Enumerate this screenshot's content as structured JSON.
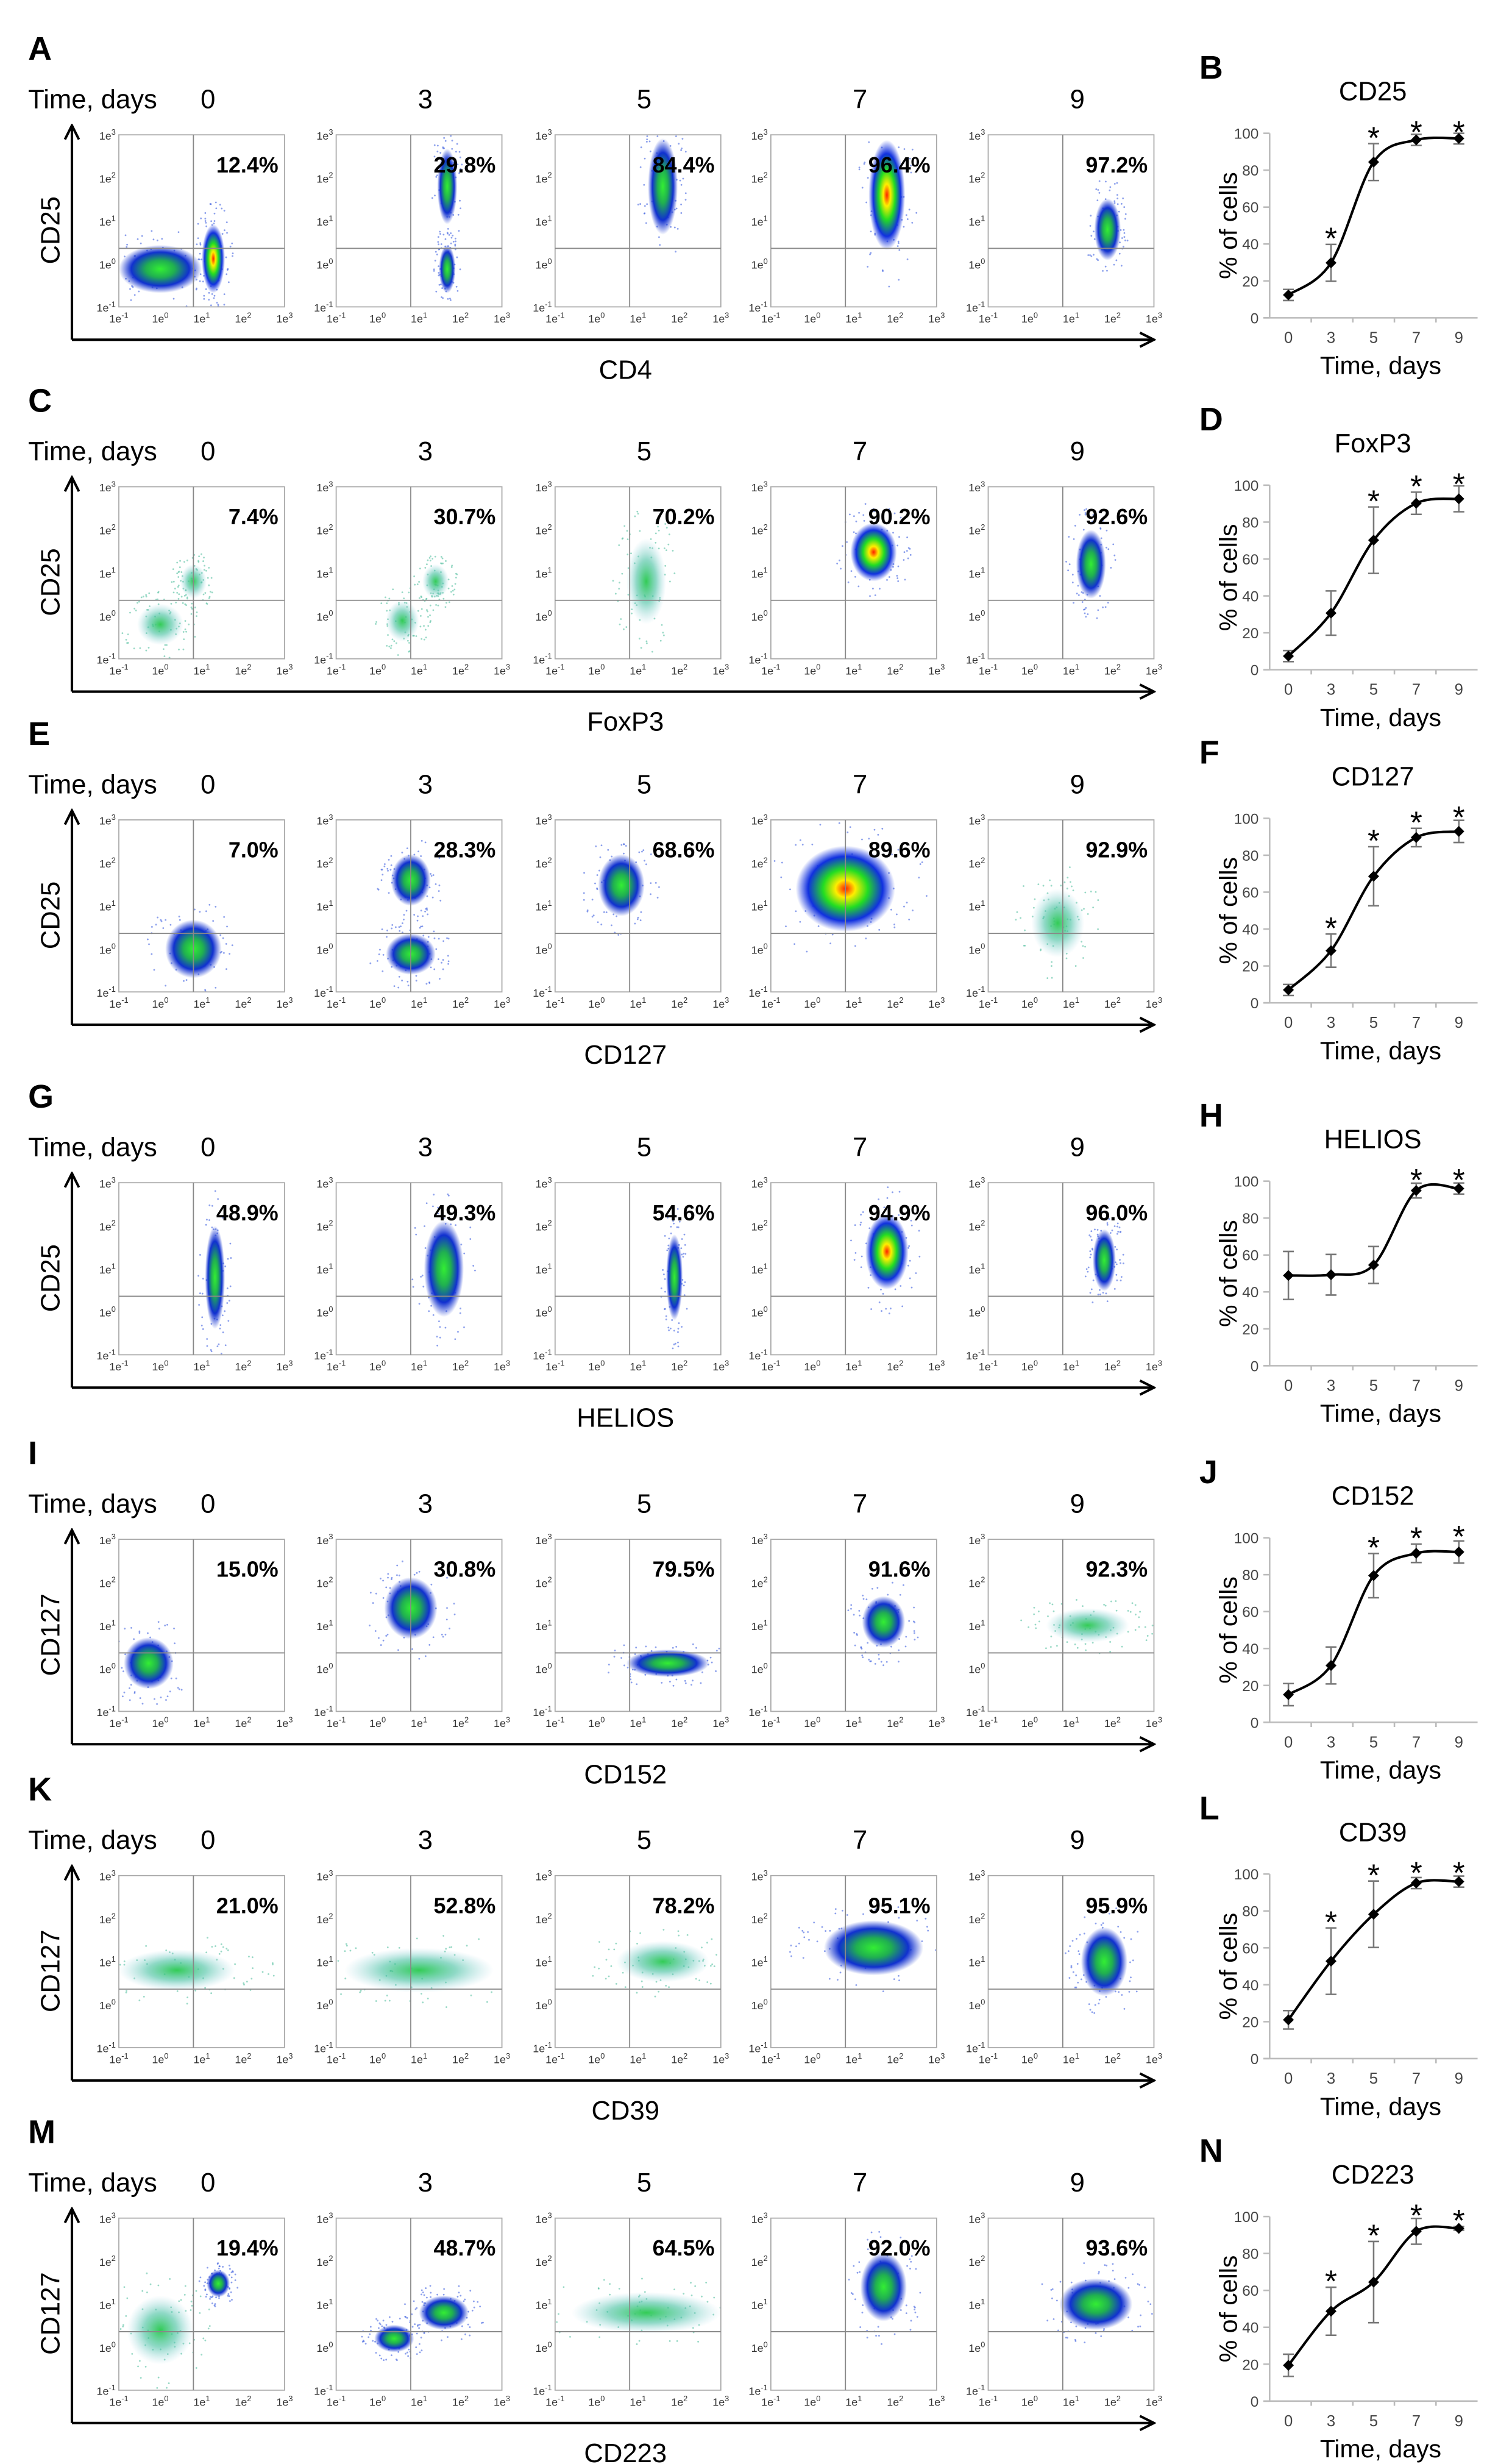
{
  "axis_ticks": [
    {
      "base": "1e",
      "exp": "-1"
    },
    {
      "base": "1e",
      "exp": "0"
    },
    {
      "base": "1e",
      "exp": "1"
    },
    {
      "base": "1e",
      "exp": "2"
    },
    {
      "base": "1e",
      "exp": "3"
    }
  ],
  "rows": [
    {
      "letter": "A",
      "time_label": "Time, days",
      "days": [
        "0",
        "3",
        "5",
        "7",
        "9"
      ],
      "y_label": "CD25",
      "x_label": "CD4",
      "percents": [
        "12.4%",
        "29.8%",
        "84.4%",
        "96.4%",
        "97.2%"
      ]
    },
    {
      "letter": "C",
      "time_label": "Time, days",
      "days": [
        "0",
        "3",
        "5",
        "7",
        "9"
      ],
      "y_label": "CD25",
      "x_label": "FoxP3",
      "percents": [
        "7.4%",
        "30.7%",
        "70.2%",
        "90.2%",
        "92.6%"
      ]
    },
    {
      "letter": "E",
      "time_label": "Time, days",
      "days": [
        "0",
        "3",
        "5",
        "7",
        "9"
      ],
      "y_label": "CD25",
      "x_label": "CD127",
      "percents": [
        "7.0%",
        "28.3%",
        "68.6%",
        "89.6%",
        "92.9%"
      ]
    },
    {
      "letter": "G",
      "time_label": "Time, days",
      "days": [
        "0",
        "3",
        "5",
        "7",
        "9"
      ],
      "y_label": "CD25",
      "x_label": "HELIOS",
      "percents": [
        "48.9%",
        "49.3%",
        "54.6%",
        "94.9%",
        "96.0%"
      ]
    },
    {
      "letter": "I",
      "time_label": "Time, days",
      "days": [
        "0",
        "3",
        "5",
        "7",
        "9"
      ],
      "y_label": "CD127",
      "x_label": "CD152",
      "percents": [
        "15.0%",
        "30.8%",
        "79.5%",
        "91.6%",
        "92.3%"
      ]
    },
    {
      "letter": "K",
      "time_label": "Time, days",
      "days": [
        "0",
        "3",
        "5",
        "7",
        "9"
      ],
      "y_label": "CD127",
      "x_label": "CD39",
      "percents": [
        "21.0%",
        "52.8%",
        "78.2%",
        "95.1%",
        "95.9%"
      ]
    },
    {
      "letter": "M",
      "time_label": "Time, days",
      "days": [
        "0",
        "3",
        "5",
        "7",
        "9"
      ],
      "y_label": "CD127",
      "x_label": "CD223",
      "percents": [
        "19.4%",
        "48.7%",
        "64.5%",
        "92.0%",
        "93.6%"
      ]
    }
  ],
  "chart_data": [
    {
      "type": "line",
      "letter": "B",
      "title": "CD25",
      "xlabel": "Time, days",
      "ylabel": "% of cells",
      "x": [
        0,
        3,
        5,
        7,
        9
      ],
      "x_tick_labels": [
        "0",
        "3",
        "5",
        "7",
        "9"
      ],
      "y": [
        12.4,
        29.8,
        84.4,
        96.4,
        97.2
      ],
      "error": [
        3,
        10,
        10,
        3,
        3
      ],
      "significant_x": [
        3,
        5,
        7,
        9
      ],
      "significance_mark": "*",
      "ylim": [
        0,
        100
      ],
      "y_ticks": [
        "0",
        "20",
        "40",
        "60",
        "80",
        "100"
      ]
    },
    {
      "type": "line",
      "letter": "D",
      "title": "FoxP3",
      "xlabel": "Time, days",
      "ylabel": "% of cells",
      "x": [
        0,
        3,
        5,
        7,
        9
      ],
      "x_tick_labels": [
        "0",
        "3",
        "5",
        "7",
        "9"
      ],
      "y": [
        7.4,
        30.7,
        70.2,
        90.2,
        92.6
      ],
      "error": [
        3,
        12,
        18,
        6,
        7
      ],
      "significant_x": [
        5,
        7,
        9
      ],
      "significance_mark": "*",
      "ylim": [
        0,
        100
      ],
      "y_ticks": [
        "0",
        "20",
        "40",
        "60",
        "80",
        "100"
      ]
    },
    {
      "type": "line",
      "letter": "F",
      "title": "CD127",
      "xlabel": "Time, days",
      "ylabel": "% of cells",
      "x": [
        0,
        3,
        5,
        7,
        9
      ],
      "x_tick_labels": [
        "0",
        "3",
        "5",
        "7",
        "9"
      ],
      "y": [
        7.0,
        28.3,
        68.6,
        89.6,
        92.9
      ],
      "error": [
        3,
        9,
        16,
        5,
        6
      ],
      "significant_x": [
        3,
        5,
        7,
        9
      ],
      "significance_mark": "*",
      "ylim": [
        0,
        100
      ],
      "y_ticks": [
        "0",
        "20",
        "40",
        "60",
        "80",
        "100"
      ]
    },
    {
      "type": "line",
      "letter": "H",
      "title": "HELIOS",
      "xlabel": "Time, days",
      "ylabel": "% of cells",
      "x": [
        0,
        3,
        5,
        7,
        9
      ],
      "x_tick_labels": [
        "0",
        "3",
        "5",
        "7",
        "9"
      ],
      "y": [
        48.9,
        49.3,
        54.6,
        94.9,
        96.0
      ],
      "error": [
        13,
        11,
        10,
        4,
        3
      ],
      "significant_x": [
        7,
        9
      ],
      "significance_mark": "*",
      "ylim": [
        0,
        100
      ],
      "y_ticks": [
        "0",
        "20",
        "40",
        "60",
        "80",
        "100"
      ]
    },
    {
      "type": "line",
      "letter": "J",
      "title": "CD152",
      "xlabel": "Time, days",
      "ylabel": "% of cells",
      "x": [
        0,
        3,
        5,
        7,
        9
      ],
      "x_tick_labels": [
        "0",
        "3",
        "5",
        "7",
        "9"
      ],
      "y": [
        15.0,
        30.8,
        79.5,
        91.6,
        92.3
      ],
      "error": [
        6,
        10,
        12,
        5,
        6
      ],
      "significant_x": [
        5,
        7,
        9
      ],
      "significance_mark": "*",
      "ylim": [
        0,
        100
      ],
      "y_ticks": [
        "0",
        "20",
        "40",
        "60",
        "80",
        "100"
      ]
    },
    {
      "type": "line",
      "letter": "L",
      "title": "CD39",
      "xlabel": "Time, days",
      "ylabel": "% of cells",
      "x": [
        0,
        3,
        5,
        7,
        9
      ],
      "x_tick_labels": [
        "0",
        "3",
        "5",
        "7",
        "9"
      ],
      "y": [
        21.0,
        52.8,
        78.2,
        95.1,
        95.9
      ],
      "error": [
        5,
        18,
        18,
        3,
        3
      ],
      "significant_x": [
        3,
        5,
        7,
        9
      ],
      "significance_mark": "*",
      "ylim": [
        0,
        100
      ],
      "y_ticks": [
        "0",
        "20",
        "40",
        "60",
        "80",
        "100"
      ]
    },
    {
      "type": "line",
      "letter": "N",
      "title": "CD223",
      "xlabel": "Time, days",
      "ylabel": "% of cells",
      "x": [
        0,
        3,
        5,
        7,
        9
      ],
      "x_tick_labels": [
        "0",
        "3",
        "5",
        "7",
        "9"
      ],
      "y": [
        19.4,
        48.7,
        64.5,
        92.0,
        93.6
      ],
      "error": [
        6,
        13,
        22,
        7,
        1
      ],
      "significant_x": [
        3,
        5,
        7,
        9
      ],
      "significance_mark": "*",
      "ylim": [
        0,
        100
      ],
      "y_ticks": [
        "0",
        "20",
        "40",
        "60",
        "80",
        "100"
      ]
    }
  ],
  "colors": {
    "axis": "#000000",
    "grid_axis": "#bbbbbb",
    "quadrant": "#888888",
    "dense_core": "#ff3300",
    "mid": "#22dd22",
    "low": "#1030e0",
    "sparse": "#33bb88"
  }
}
